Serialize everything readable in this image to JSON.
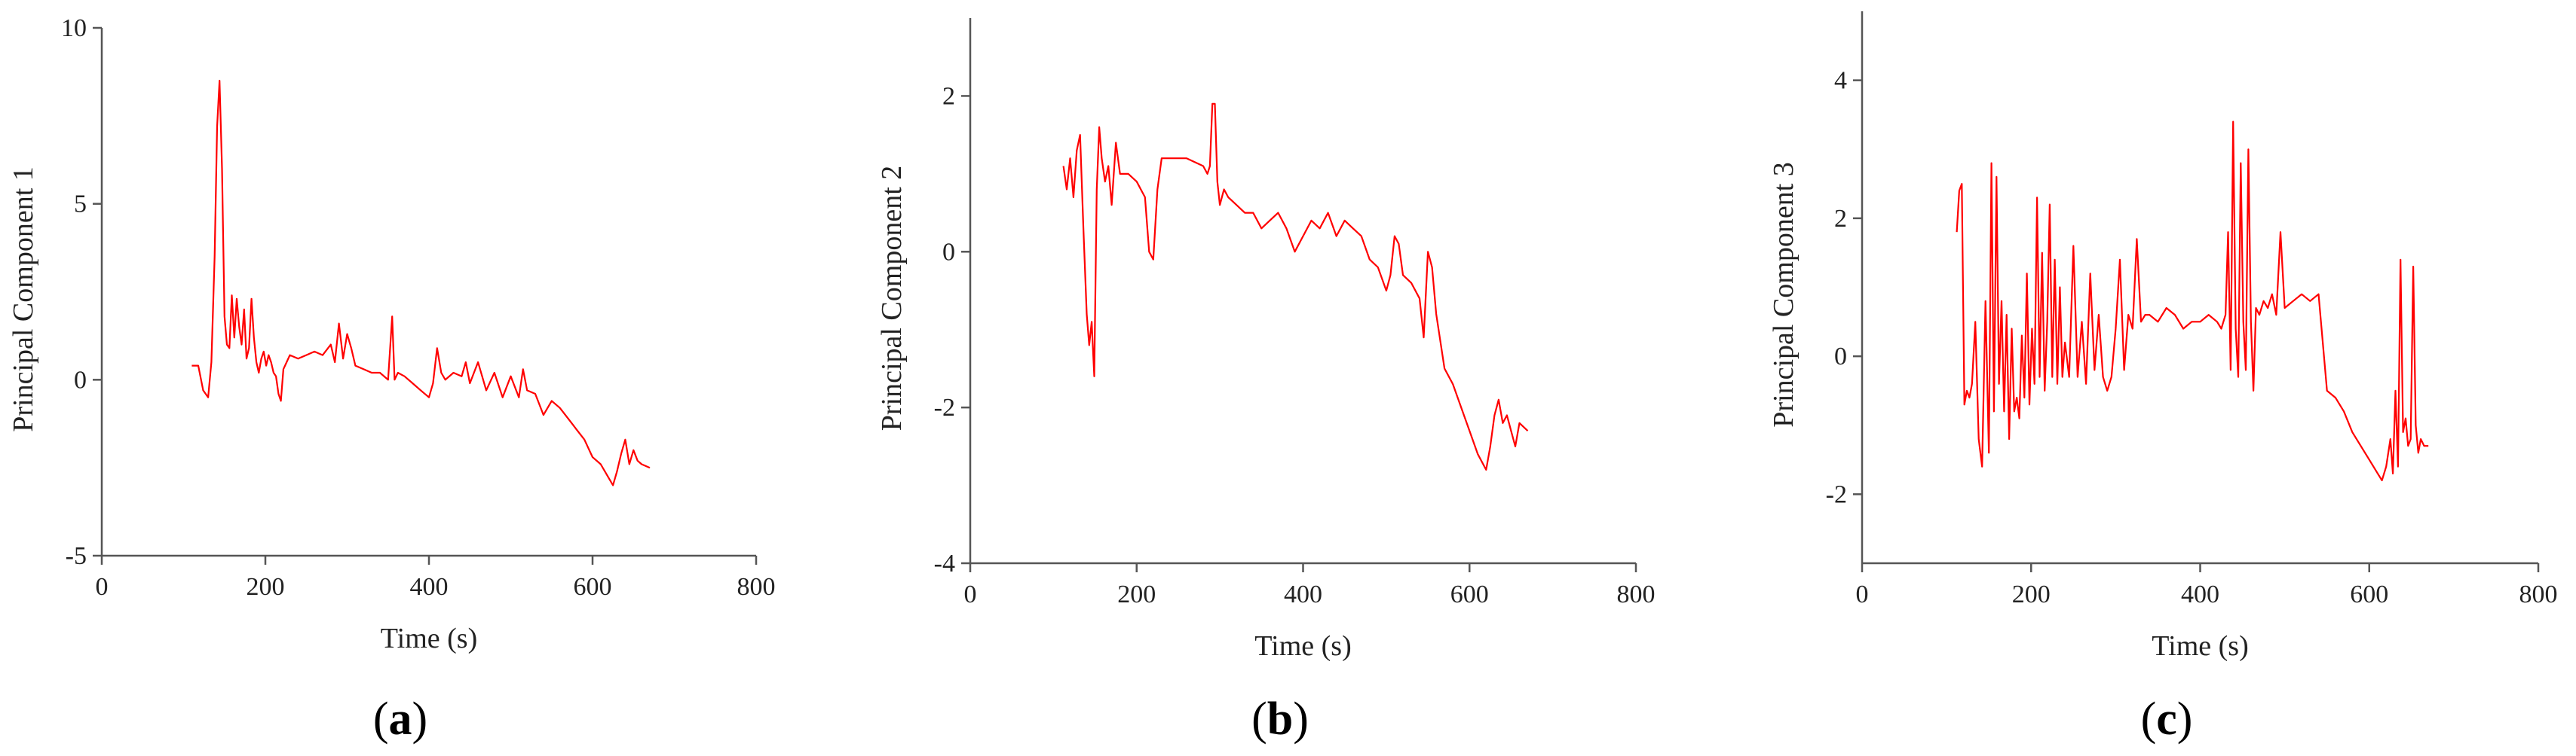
{
  "chart_data": [
    {
      "type": "line",
      "panel": "(a)",
      "panel_letter": "a",
      "xlabel": "Time (s)",
      "ylabel": "Principal Component 1",
      "xlim": [
        0,
        800
      ],
      "ylim": [
        -5,
        10
      ],
      "xticks": [
        "0",
        "200",
        "400",
        "600",
        "800"
      ],
      "yticks": [
        "-5",
        "0",
        "5",
        "10"
      ],
      "grid": false,
      "series": [
        {
          "color": "#ff0000",
          "x": [
            110,
            118,
            124,
            130,
            134,
            138,
            141,
            144,
            147,
            150,
            153,
            156,
            159,
            162,
            165,
            168,
            171,
            174,
            177,
            180,
            183,
            186,
            189,
            192,
            195,
            198,
            201,
            204,
            207,
            210,
            213,
            216,
            219,
            222,
            226,
            230,
            240,
            250,
            260,
            270,
            280,
            285,
            290,
            295,
            300,
            305,
            310,
            320,
            330,
            340,
            350,
            355,
            358,
            362,
            370,
            380,
            390,
            400,
            405,
            410,
            415,
            420,
            430,
            440,
            445,
            450,
            455,
            460,
            470,
            480,
            490,
            500,
            510,
            515,
            520,
            530,
            540,
            550,
            560,
            570,
            580,
            590,
            600,
            610,
            620,
            625,
            630,
            635,
            640,
            645,
            650,
            655,
            660,
            670
          ],
          "y": [
            0.4,
            0.4,
            -0.3,
            -0.5,
            0.5,
            3.5,
            7.2,
            8.5,
            6.0,
            1.8,
            1.0,
            0.9,
            2.4,
            1.2,
            2.3,
            1.5,
            1.0,
            2.0,
            0.6,
            0.9,
            2.3,
            1.2,
            0.5,
            0.2,
            0.6,
            0.8,
            0.4,
            0.7,
            0.5,
            0.2,
            0.1,
            -0.4,
            -0.6,
            0.3,
            0.5,
            0.7,
            0.6,
            0.7,
            0.8,
            0.7,
            1.0,
            0.5,
            1.6,
            0.6,
            1.3,
            0.9,
            0.4,
            0.3,
            0.2,
            0.2,
            0.0,
            1.8,
            0.0,
            0.2,
            0.1,
            -0.1,
            -0.3,
            -0.5,
            -0.1,
            0.9,
            0.2,
            0.0,
            0.2,
            0.1,
            0.5,
            -0.1,
            0.2,
            0.5,
            -0.3,
            0.2,
            -0.5,
            0.1,
            -0.5,
            0.3,
            -0.3,
            -0.4,
            -1.0,
            -0.6,
            -0.8,
            -1.1,
            -1.4,
            -1.7,
            -2.2,
            -2.4,
            -2.8,
            -3.0,
            -2.6,
            -2.1,
            -1.7,
            -2.4,
            -2.0,
            -2.3,
            -2.4,
            -2.5
          ]
        }
      ]
    },
    {
      "type": "line",
      "panel": "(b)",
      "panel_letter": "b",
      "xlabel": "Time (s)",
      "ylabel": "Principal Component 2",
      "xlim": [
        0,
        800
      ],
      "ylim": [
        -4,
        3
      ],
      "xticks": [
        "0",
        "200",
        "400",
        "600",
        "800"
      ],
      "yticks": [
        "-4",
        "-2",
        "0",
        "2"
      ],
      "grid": false,
      "series": [
        {
          "color": "#ff0000",
          "x": [
            112,
            116,
            120,
            124,
            128,
            132,
            136,
            140,
            143,
            146,
            149,
            152,
            155,
            158,
            162,
            166,
            170,
            175,
            180,
            190,
            200,
            210,
            215,
            220,
            225,
            230,
            240,
            260,
            280,
            285,
            288,
            291,
            294,
            297,
            300,
            305,
            310,
            320,
            330,
            340,
            350,
            360,
            370,
            380,
            390,
            400,
            410,
            420,
            430,
            440,
            450,
            460,
            470,
            480,
            490,
            500,
            505,
            510,
            515,
            520,
            530,
            540,
            545,
            550,
            555,
            560,
            570,
            580,
            590,
            600,
            610,
            620,
            625,
            630,
            635,
            640,
            645,
            650,
            655,
            660,
            670
          ],
          "y": [
            1.1,
            0.8,
            1.2,
            0.7,
            1.3,
            1.5,
            0.3,
            -0.8,
            -1.2,
            -0.9,
            -1.6,
            0.8,
            1.6,
            1.2,
            0.9,
            1.1,
            0.6,
            1.4,
            1.0,
            1.0,
            0.9,
            0.7,
            0.0,
            -0.1,
            0.8,
            1.2,
            1.2,
            1.2,
            1.1,
            1.0,
            1.1,
            1.9,
            1.9,
            0.9,
            0.6,
            0.8,
            0.7,
            0.6,
            0.5,
            0.5,
            0.3,
            0.4,
            0.5,
            0.3,
            0.0,
            0.2,
            0.4,
            0.3,
            0.5,
            0.2,
            0.4,
            0.3,
            0.2,
            -0.1,
            -0.2,
            -0.5,
            -0.3,
            0.2,
            0.1,
            -0.3,
            -0.4,
            -0.6,
            -1.1,
            0.0,
            -0.2,
            -0.8,
            -1.5,
            -1.7,
            -2.0,
            -2.3,
            -2.6,
            -2.8,
            -2.5,
            -2.1,
            -1.9,
            -2.2,
            -2.1,
            -2.3,
            -2.5,
            -2.2,
            -2.3
          ]
        }
      ]
    },
    {
      "type": "line",
      "panel": "(c)",
      "panel_letter": "c",
      "xlabel": "Time (s)",
      "ylabel": "Principal Component 3",
      "xlim": [
        0,
        800
      ],
      "ylim": [
        -3,
        5
      ],
      "xticks": [
        "0",
        "200",
        "400",
        "600",
        "800"
      ],
      "yticks": [
        "-2",
        "0",
        "2",
        "4"
      ],
      "grid": false,
      "series": [
        {
          "color": "#ff0000",
          "x": [
            112,
            115,
            118,
            121,
            124,
            127,
            130,
            134,
            138,
            142,
            146,
            150,
            153,
            156,
            159,
            162,
            165,
            168,
            171,
            174,
            177,
            180,
            183,
            186,
            189,
            192,
            195,
            198,
            201,
            204,
            207,
            210,
            213,
            216,
            219,
            222,
            225,
            228,
            231,
            234,
            237,
            240,
            245,
            250,
            255,
            260,
            265,
            270,
            275,
            280,
            285,
            290,
            295,
            300,
            305,
            310,
            315,
            320,
            325,
            330,
            335,
            340,
            350,
            360,
            370,
            380,
            390,
            400,
            410,
            420,
            425,
            430,
            433,
            436,
            439,
            442,
            445,
            448,
            451,
            454,
            457,
            460,
            463,
            466,
            470,
            475,
            480,
            485,
            490,
            495,
            500,
            510,
            520,
            530,
            540,
            550,
            560,
            570,
            580,
            590,
            600,
            610,
            615,
            620,
            625,
            628,
            631,
            634,
            637,
            640,
            643,
            646,
            649,
            652,
            655,
            658,
            661,
            665,
            670
          ],
          "y": [
            1.8,
            2.4,
            2.5,
            -0.7,
            -0.5,
            -0.6,
            -0.4,
            0.5,
            -1.2,
            -1.6,
            0.8,
            -1.4,
            2.8,
            -0.8,
            2.6,
            -0.4,
            0.8,
            -0.8,
            0.6,
            -1.2,
            0.4,
            -0.8,
            -0.6,
            -0.9,
            0.3,
            -0.6,
            1.2,
            -0.7,
            0.4,
            -0.4,
            2.3,
            -0.3,
            1.5,
            -0.5,
            0.5,
            2.2,
            -0.3,
            1.4,
            -0.4,
            1.0,
            -0.3,
            0.2,
            -0.3,
            1.6,
            -0.3,
            0.5,
            -0.4,
            1.2,
            -0.2,
            0.6,
            -0.3,
            -0.5,
            -0.3,
            0.4,
            1.4,
            -0.2,
            0.6,
            0.4,
            1.7,
            0.5,
            0.6,
            0.6,
            0.5,
            0.7,
            0.6,
            0.4,
            0.5,
            0.5,
            0.6,
            0.5,
            0.4,
            0.6,
            1.8,
            -0.2,
            3.4,
            0.4,
            -0.3,
            2.8,
            0.5,
            -0.2,
            3.0,
            0.5,
            -0.5,
            0.7,
            0.6,
            0.8,
            0.7,
            0.9,
            0.6,
            1.8,
            0.7,
            0.8,
            0.9,
            0.8,
            0.9,
            -0.5,
            -0.6,
            -0.8,
            -1.1,
            -1.3,
            -1.5,
            -1.7,
            -1.8,
            -1.6,
            -1.2,
            -1.7,
            -0.5,
            -1.6,
            1.4,
            -1.1,
            -0.9,
            -1.3,
            -1.2,
            1.3,
            -1.0,
            -1.4,
            -1.2,
            -1.3,
            -1.3
          ]
        }
      ]
    }
  ]
}
